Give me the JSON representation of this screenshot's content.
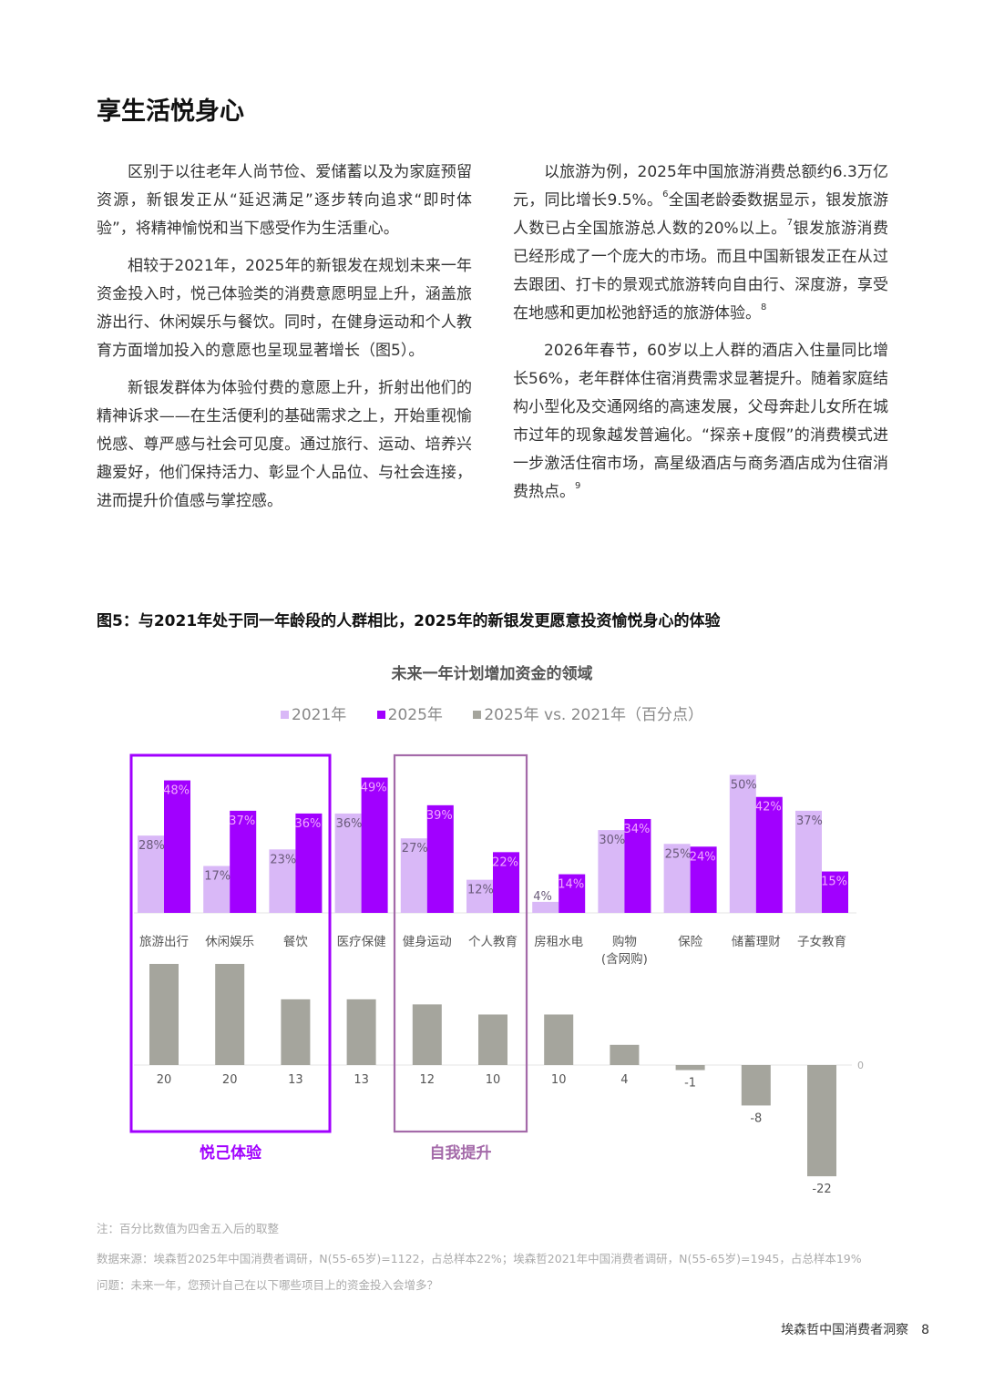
{
  "heading": "享生活悦身心",
  "left_column": [
    {
      "text": "区别于以往老年人尚节俭、爱储蓄以及为家庭预留资源，新银发正从“延迟满足”逐步转向追求“即时体验”，将精神愉悦和当下感受作为生活重心。"
    },
    {
      "text": "相较于2021年，2025年的新银发在规划未来一年资金投入时，悦己体验类的消费意愿明显上升，涵盖旅游出行、休闲娱乐与餐饮。同时，在健身运动和个人教育方面增加投入的意愿也呈现显著增长（图5）。"
    },
    {
      "text": "新银发群体为体验付费的意愿上升，折射出他们的精神诉求——在生活便利的基础需求之上，开始重视愉悦感、尊严感与社会可见度。通过旅行、运动、培养兴趣爱好，他们保持活力、彰显个人品位、与社会连接，进而提升价值感与掌控感。"
    }
  ],
  "right_column": [
    {
      "text": "以旅游为例，2025年中国旅游消费总额约6.3万亿元，同比增长9.5%。",
      "sup": "6",
      "text2": "全国老龄委数据显示，银发旅游人数已占全国旅游总人数的20%以上。",
      "sup2": "7",
      "text3": "银发旅游消费已经形成了一个庞大的市场。而且中国新银发正在从过去跟团、打卡的景观式旅游转向自由行、深度游，享受在地感和更加松弛舒适的旅游体验。",
      "sup3": "8"
    },
    {
      "text": "2026年春节，60岁以上人群的酒店入住量同比增长56%，老年群体住宿消费需求显著提升。随着家庭结构小型化及交通网络的高速发展，父母奔赴儿女所在城市过年的现象越发普遍化。“探亲+度假”的消费模式进一步激活住宿市场，高星级酒店与商务酒店成为住宿消费热点。",
      "sup": "9"
    }
  ],
  "figure_title": "图5：与2021年处于同一年龄段的人群相比，2025年的新银发更愿意投资愉悦身心的体验",
  "chart_data": {
    "type": "bar",
    "title": "未来一年计划增加资金的领域",
    "legend": [
      "2021年",
      "2025年",
      "2025年 vs. 2021年（百分点）"
    ],
    "legend_placement": "top",
    "categories": [
      "旅游出行",
      "休闲娱乐",
      "餐饮",
      "医疗保健",
      "健身运动",
      "个人教育",
      "房租水电",
      "购物\n(含网购)",
      "保险",
      "储蓄理财",
      "子女教育"
    ],
    "series": [
      {
        "name": "2021年",
        "unit": "%",
        "color": "#d9b8f7",
        "values": [
          28,
          17,
          23,
          36,
          27,
          12,
          4,
          30,
          25,
          50,
          37
        ]
      },
      {
        "name": "2025年",
        "unit": "%",
        "color": "#a100ff",
        "values": [
          48,
          37,
          36,
          49,
          39,
          22,
          14,
          34,
          24,
          42,
          15
        ]
      },
      {
        "name": "2025年 vs. 2021年（百分点）",
        "unit": "pp",
        "color": "#a5a59d",
        "values": [
          20,
          20,
          13,
          13,
          12,
          10,
          10,
          4,
          -1,
          -8,
          -22
        ]
      }
    ],
    "zero_label": "0",
    "groups": [
      {
        "label": "悦己体验",
        "categories": [
          "旅游出行",
          "休闲娱乐",
          "餐饮"
        ],
        "color": "#a100ff"
      },
      {
        "label": "自我提升",
        "categories": [
          "健身运动",
          "个人教育"
        ],
        "color": "#a46aa9"
      }
    ],
    "grid": false
  },
  "notes": {
    "note": "注：百分比数值为四舍五入后的取整",
    "source": "数据来源：埃森哲2025年中国消费者调研，N(55-65岁)=1122，占总样本22%；埃森哲2021年中国消费者调研，N(55-65岁)=1945，占总样本19%",
    "question": "问题：未来一年，您预计自己在以下哪些项目上的资金投入会增多？"
  },
  "footer": {
    "publication": "埃森哲中国消费者洞察",
    "page": "8"
  }
}
